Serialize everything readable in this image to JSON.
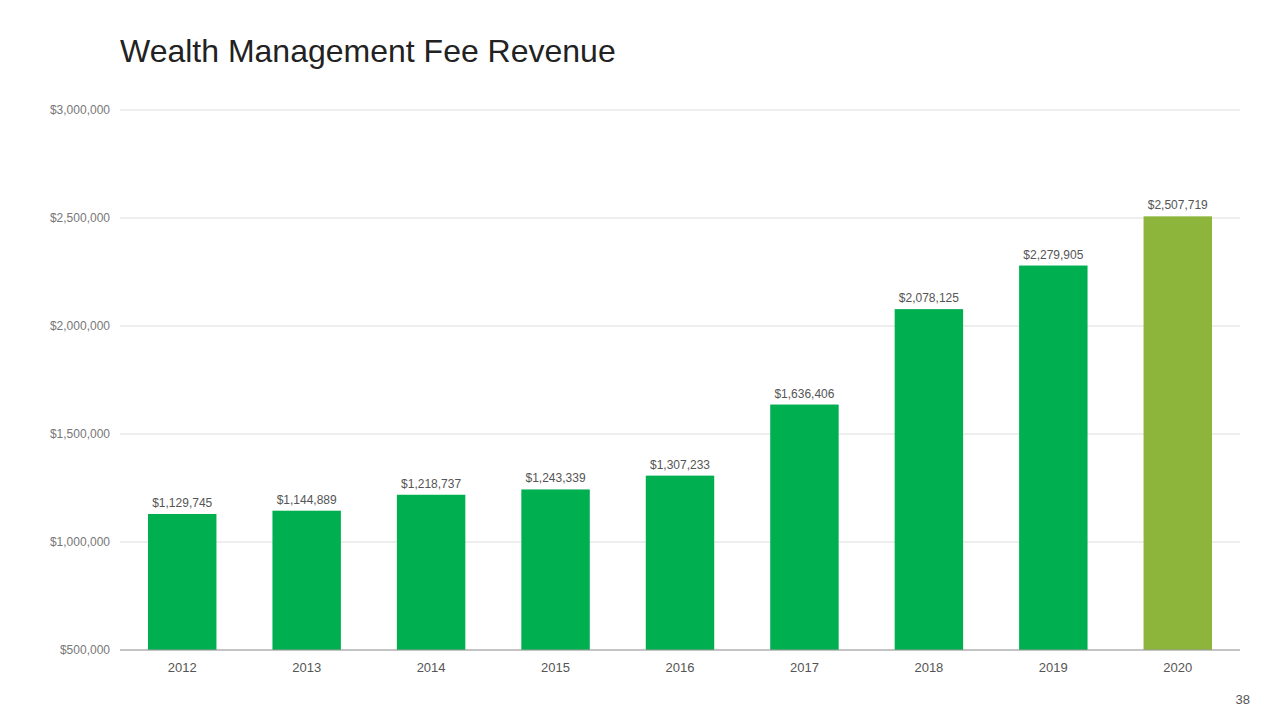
{
  "chart_data": {
    "type": "bar",
    "title": "Wealth Management Fee Revenue",
    "categories": [
      "2012",
      "2013",
      "2014",
      "2015",
      "2016",
      "2017",
      "2018",
      "2019",
      "2020"
    ],
    "values": [
      1129745,
      1144889,
      1218737,
      1243339,
      1307233,
      1636406,
      2078125,
      2279905,
      2507719
    ],
    "value_labels": [
      "$1,129,745",
      "$1,144,889",
      "$1,218,737",
      "$1,243,339",
      "$1,307,233",
      "$1,636,406",
      "$2,078,125",
      "$2,279,905",
      "$2,507,719"
    ],
    "colors": [
      "#00b050",
      "#00b050",
      "#00b050",
      "#00b050",
      "#00b050",
      "#00b050",
      "#00b050",
      "#00b050",
      "#8db53c"
    ],
    "ylim": [
      500000,
      3000000
    ],
    "yticks": [
      {
        "value": 500000,
        "label": "$500,000"
      },
      {
        "value": 1000000,
        "label": "$1,000,000"
      },
      {
        "value": 1500000,
        "label": "$1,500,000"
      },
      {
        "value": 2000000,
        "label": "$2,000,000"
      },
      {
        "value": 2500000,
        "label": "$2,500,000"
      },
      {
        "value": 3000000,
        "label": "$3,000,000"
      }
    ],
    "grid": true,
    "data_labels": true,
    "annotations": [
      "38"
    ]
  }
}
